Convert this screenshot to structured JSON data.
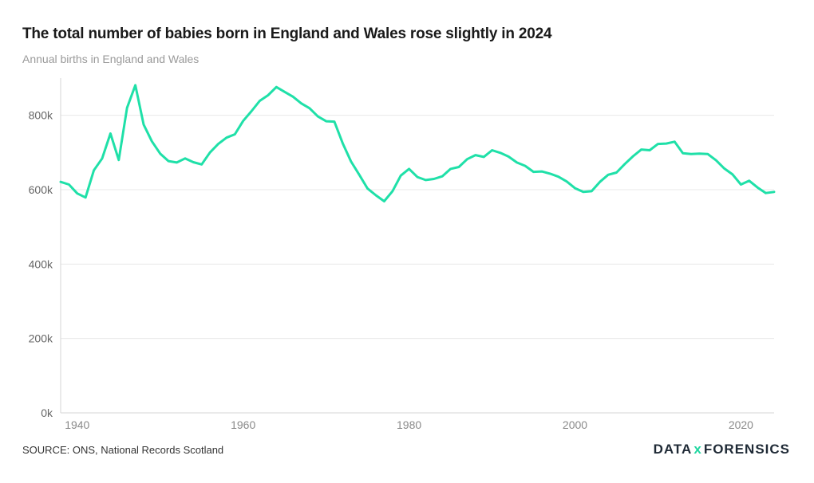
{
  "title": "The total number of babies born in England and Wales rose slightly in 2024",
  "subtitle": "Annual births in England and Wales",
  "source": "SOURCE: ONS, National Records Scotland",
  "logo": {
    "left": "DATA",
    "mark": "x",
    "right": "FORENSICS"
  },
  "colors": {
    "line": "#1fe0a8",
    "grid": "#e8e8e8",
    "axis": "#666666"
  },
  "chart_data": {
    "type": "line",
    "title": "The total number of babies born in England and Wales rose slightly in 2024",
    "subtitle": "Annual births in England and Wales",
    "xlabel": "",
    "ylabel": "",
    "xlim": [
      1938,
      2024
    ],
    "ylim": [
      0,
      900000
    ],
    "grid": true,
    "yticks": [
      0,
      200000,
      400000,
      600000,
      800000
    ],
    "ytick_labels": [
      "0k",
      "200k",
      "400k",
      "600k",
      "800k"
    ],
    "xticks": [
      1940,
      1960,
      1980,
      2000,
      2020
    ],
    "xtick_labels": [
      "1940",
      "1960",
      "1980",
      "2000",
      "2020"
    ],
    "series": [
      {
        "name": "Annual births",
        "x": [
          1938,
          1939,
          1940,
          1941,
          1942,
          1943,
          1944,
          1945,
          1946,
          1947,
          1948,
          1949,
          1950,
          1951,
          1952,
          1953,
          1954,
          1955,
          1956,
          1957,
          1958,
          1959,
          1960,
          1961,
          1962,
          1963,
          1964,
          1965,
          1966,
          1967,
          1968,
          1969,
          1970,
          1971,
          1972,
          1973,
          1974,
          1975,
          1976,
          1977,
          1978,
          1979,
          1980,
          1981,
          1982,
          1983,
          1984,
          1985,
          1986,
          1987,
          1988,
          1989,
          1990,
          1991,
          1992,
          1993,
          1994,
          1995,
          1996,
          1997,
          1998,
          1999,
          2000,
          2001,
          2002,
          2003,
          2004,
          2005,
          2006,
          2007,
          2008,
          2009,
          2010,
          2011,
          2012,
          2013,
          2014,
          2015,
          2016,
          2017,
          2018,
          2019,
          2020,
          2021,
          2022,
          2023,
          2024
        ],
        "values": [
          621000,
          614000,
          590000,
          579000,
          652000,
          684000,
          751000,
          680000,
          820000,
          881000,
          775000,
          730000,
          697000,
          677000,
          673000,
          684000,
          674000,
          668000,
          700000,
          723000,
          740000,
          749000,
          785000,
          811000,
          839000,
          854000,
          876000,
          863000,
          850000,
          832000,
          819000,
          797000,
          784000,
          783000,
          725000,
          676000,
          640000,
          603000,
          585000,
          569000,
          596000,
          638000,
          656000,
          634000,
          626000,
          629000,
          636000,
          656000,
          661000,
          682000,
          693000,
          688000,
          706000,
          699000,
          689000,
          673000,
          664000,
          648000,
          649000,
          643000,
          635000,
          622000,
          604000,
          594000,
          596000,
          621000,
          640000,
          646000,
          669000,
          690000,
          708000,
          706000,
          723000,
          724000,
          729000,
          698000,
          696000,
          697000,
          696000,
          679000,
          657000,
          641000,
          614000,
          624000,
          606000,
          591000,
          594000
        ]
      }
    ]
  }
}
